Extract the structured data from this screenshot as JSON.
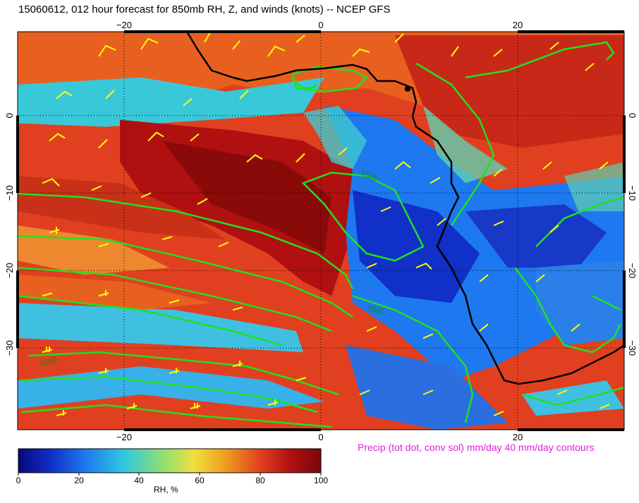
{
  "title": "15060612, 012 hour forecast for 850mb RH, Z, and winds (knots)  -- NCEP GFS",
  "precip_note": "Precip (tot dot, conv sol) mm/day 40 mm/day contours",
  "colorbar": {
    "label": "RH, %",
    "ticks": [
      "0",
      "20",
      "40",
      "60",
      "80",
      "100"
    ],
    "colors": [
      "#08087a",
      "#1030c8",
      "#1e78f0",
      "#30c8e0",
      "#90e070",
      "#f0e040",
      "#f0a020",
      "#e04020",
      "#b01010",
      "#7a0808"
    ]
  },
  "map": {
    "lon_labels_top": [
      "−20",
      "0",
      "20"
    ],
    "lon_labels_bottom": [
      "−20",
      "0",
      "20"
    ],
    "lat_labels_left": [
      "0",
      "−10",
      "−20",
      "−30"
    ],
    "lat_labels_right": [
      "0",
      "−10",
      "−20",
      "−30"
    ],
    "contour_labels": [
      "1520",
      "1540",
      "1580"
    ],
    "colors": {
      "coast": "#000000",
      "height_contours": "#20e020",
      "barbs": "#ffff00"
    }
  }
}
